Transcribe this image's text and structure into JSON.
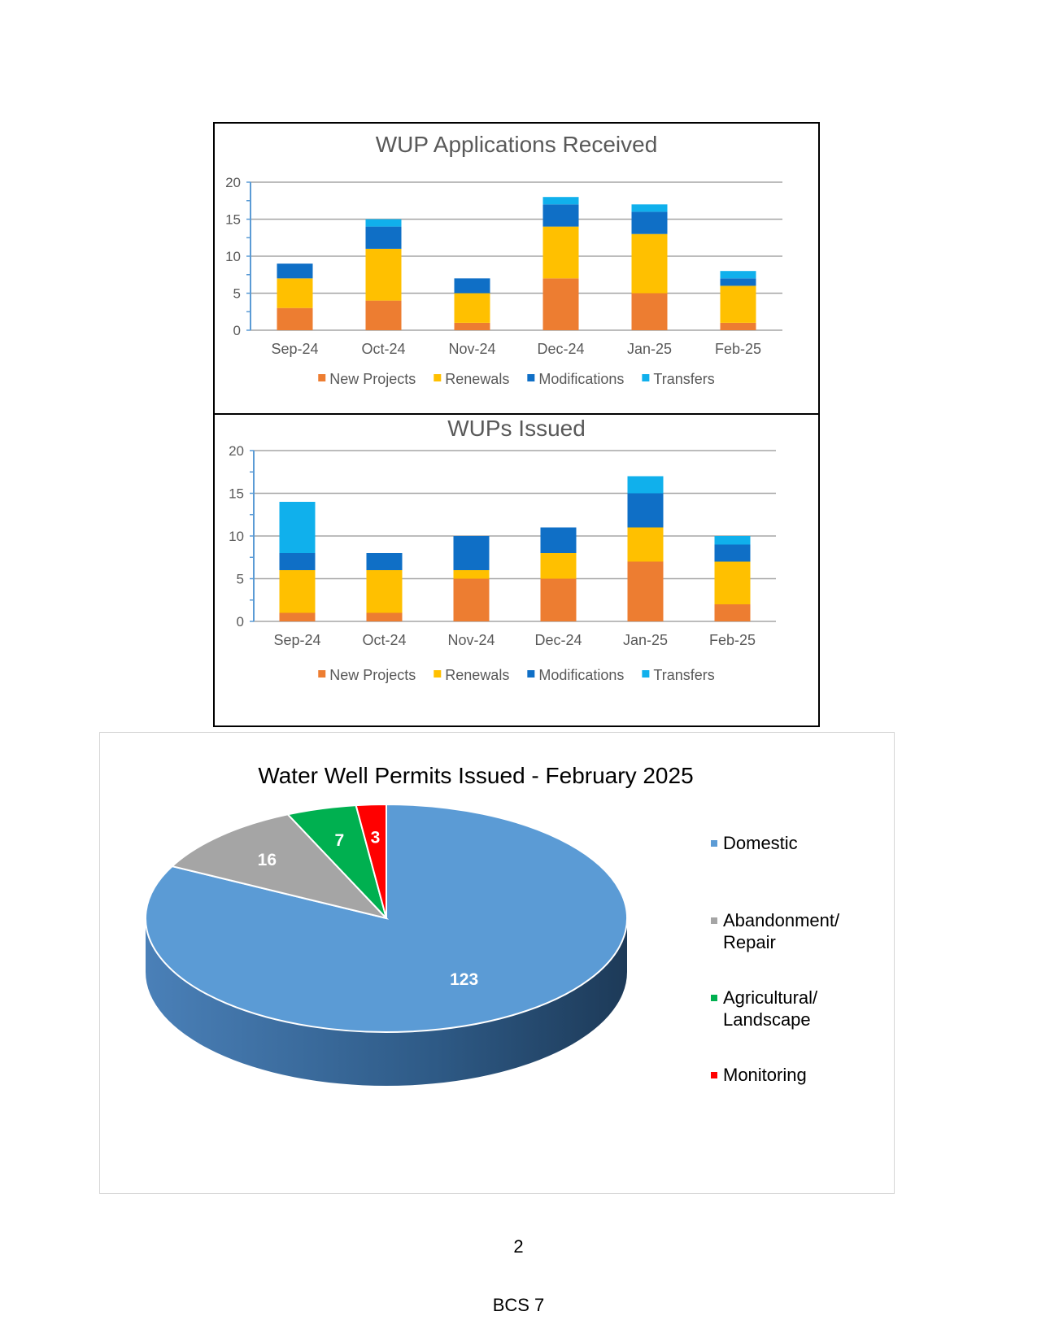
{
  "page": {
    "number": "2",
    "footer": "BCS 7"
  },
  "chart_data": [
    {
      "type": "bar",
      "stacked": true,
      "title": "WUP Applications Received",
      "categories": [
        "Sep-24",
        "Oct-24",
        "Nov-24",
        "Dec-24",
        "Jan-25",
        "Feb-25"
      ],
      "series": [
        {
          "name": "New Projects",
          "color": "#ED7D31",
          "values": [
            3,
            4,
            1,
            7,
            5,
            1
          ]
        },
        {
          "name": "Renewals",
          "color": "#FFC000",
          "values": [
            4,
            7,
            4,
            7,
            8,
            5
          ]
        },
        {
          "name": "Modifications",
          "color": "#0F6FC6",
          "values": [
            2,
            3,
            2,
            3,
            3,
            1
          ]
        },
        {
          "name": "Transfers",
          "color": "#10B0EC",
          "values": [
            0,
            1,
            0,
            1,
            1,
            1
          ]
        }
      ],
      "ylim": [
        0,
        20
      ],
      "yticks": [
        0,
        5,
        10,
        15,
        20
      ],
      "grid": true,
      "legend": "bottom"
    },
    {
      "type": "bar",
      "stacked": true,
      "title": "WUPs Issued",
      "categories": [
        "Sep-24",
        "Oct-24",
        "Nov-24",
        "Dec-24",
        "Jan-25",
        "Feb-25"
      ],
      "series": [
        {
          "name": "New Projects",
          "color": "#ED7D31",
          "values": [
            1,
            1,
            5,
            5,
            7,
            2
          ]
        },
        {
          "name": "Renewals",
          "color": "#FFC000",
          "values": [
            5,
            5,
            1,
            3,
            4,
            5
          ]
        },
        {
          "name": "Modifications",
          "color": "#0F6FC6",
          "values": [
            2,
            2,
            4,
            3,
            4,
            2
          ]
        },
        {
          "name": "Transfers",
          "color": "#10B0EC",
          "values": [
            6,
            0,
            0,
            0,
            2,
            1
          ]
        }
      ],
      "ylim": [
        0,
        20
      ],
      "yticks": [
        0,
        5,
        10,
        15,
        20
      ],
      "grid": true,
      "legend": "bottom"
    },
    {
      "type": "pie",
      "style": "3d",
      "title": "Water Well Permits Issued - February 2025",
      "slices": [
        {
          "label": "Domestic",
          "value": 123,
          "color": "#5B9BD5"
        },
        {
          "label": "Abandonment/ Repair",
          "lines": [
            "Abandonment/",
            "Repair"
          ],
          "value": 16,
          "color": "#A5A5A5"
        },
        {
          "label": "Agricultural/ Landscape",
          "lines": [
            "Agricultural/",
            "Landscape"
          ],
          "value": 7,
          "color": "#00B050"
        },
        {
          "label": "Monitoring",
          "value": 3,
          "color": "#FF0000"
        }
      ],
      "legend": "right",
      "data_labels": true
    }
  ]
}
